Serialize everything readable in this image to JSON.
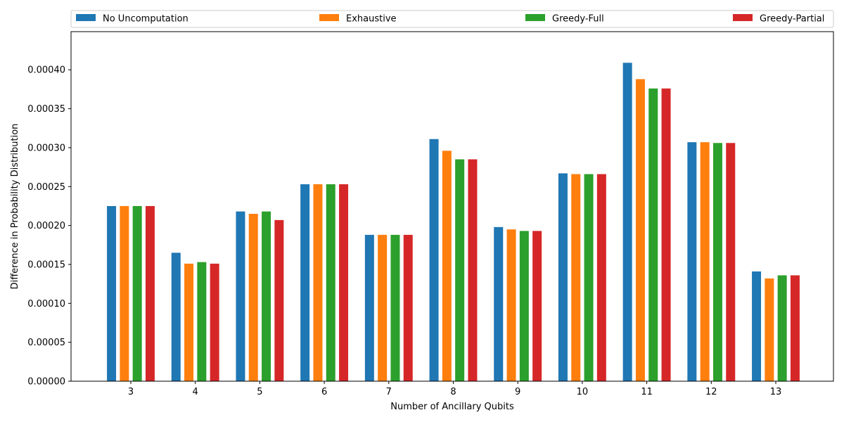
{
  "chart_data": {
    "type": "bar",
    "title": "",
    "xlabel": "Number of Ancillary Qubits",
    "ylabel": "Difference in Probability Distribution",
    "categories": [
      "3",
      "4",
      "5",
      "6",
      "7",
      "8",
      "9",
      "10",
      "11",
      "12",
      "13"
    ],
    "ylim": [
      0,
      0.000449
    ],
    "yticks": [
      "0.00000",
      "0.00005",
      "0.00010",
      "0.00015",
      "0.00020",
      "0.00025",
      "0.00030",
      "0.00035",
      "0.00040"
    ],
    "ytick_values": [
      0,
      5e-05,
      0.0001,
      0.00015,
      0.0002,
      0.00025,
      0.0003,
      0.00035,
      0.0004
    ],
    "grid": false,
    "legend_position": "top, above plot",
    "series": [
      {
        "name": "No Uncomputation",
        "color": "#1f77b4",
        "values": [
          0.000225,
          0.000165,
          0.000218,
          0.000253,
          0.000188,
          0.000311,
          0.000198,
          0.000267,
          0.000409,
          0.000307,
          0.000141
        ]
      },
      {
        "name": "Exhaustive",
        "color": "#ff7f0e",
        "values": [
          0.000225,
          0.000151,
          0.000215,
          0.000253,
          0.000188,
          0.000296,
          0.000195,
          0.000266,
          0.000388,
          0.000307,
          0.000132
        ]
      },
      {
        "name": "Greedy-Full",
        "color": "#2ca02c",
        "values": [
          0.000225,
          0.000153,
          0.000218,
          0.000253,
          0.000188,
          0.000285,
          0.000193,
          0.000266,
          0.000376,
          0.000306,
          0.000136
        ]
      },
      {
        "name": "Greedy-Partial",
        "color": "#d62728",
        "values": [
          0.000225,
          0.000151,
          0.000207,
          0.000253,
          0.000188,
          0.000285,
          0.000193,
          0.000266,
          0.000376,
          0.000306,
          0.000136
        ]
      }
    ]
  }
}
